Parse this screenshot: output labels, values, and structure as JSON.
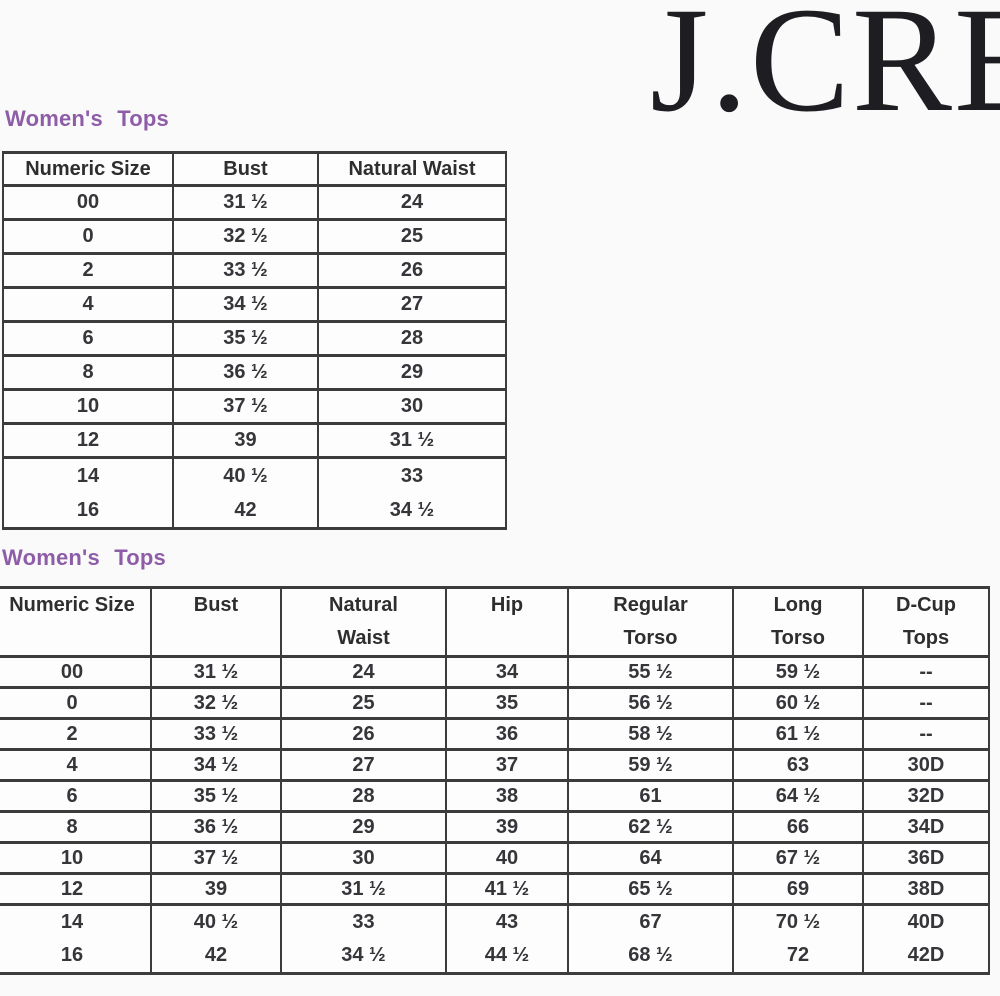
{
  "brand": {
    "logo_text": "J.CREW"
  },
  "colors": {
    "title_purple": "#8e5da8",
    "table_border": "#3c3c3c",
    "logo_black": "#1e1e22",
    "background": "#fafafa"
  },
  "tops_basic": {
    "title": "Women's Tops",
    "headers": [
      "Numeric Size",
      "Bust",
      "Natural Waist"
    ],
    "rows": [
      [
        "00",
        "31 ½",
        "24"
      ],
      [
        "0",
        "32 ½",
        "25"
      ],
      [
        "2",
        "33 ½",
        "26"
      ],
      [
        "4",
        "34 ½",
        "27"
      ],
      [
        "6",
        "35 ½",
        "28"
      ],
      [
        "8",
        "36 ½",
        "29"
      ],
      [
        "10",
        "37 ½",
        "30"
      ],
      [
        "12",
        "39",
        "31 ½"
      ],
      [
        "14",
        "40 ½",
        "33"
      ],
      [
        "16",
        "42",
        "34 ½"
      ]
    ]
  },
  "tops_extended": {
    "title": "Women's Tops",
    "headers": [
      "Numeric Size",
      "Bust",
      "Natural Waist",
      "Hip",
      "Regular Torso",
      "Long Torso",
      "D-Cup Tops"
    ],
    "rows": [
      [
        "00",
        "31 ½",
        "24",
        "34",
        "55 ½",
        "59 ½",
        "--"
      ],
      [
        "0",
        "32 ½",
        "25",
        "35",
        "56 ½",
        "60 ½",
        "--"
      ],
      [
        "2",
        "33 ½",
        "26",
        "36",
        "58 ½",
        "61 ½",
        "--"
      ],
      [
        "4",
        "34 ½",
        "27",
        "37",
        "59 ½",
        "63",
        "30D"
      ],
      [
        "6",
        "35 ½",
        "28",
        "38",
        "61",
        "64 ½",
        "32D"
      ],
      [
        "8",
        "36 ½",
        "29",
        "39",
        "62 ½",
        "66",
        "34D"
      ],
      [
        "10",
        "37 ½",
        "30",
        "40",
        "64",
        "67 ½",
        "36D"
      ],
      [
        "12",
        "39",
        "31 ½",
        "41 ½",
        "65 ½",
        "69",
        "38D"
      ],
      [
        "14",
        "40 ½",
        "33",
        "43",
        "67",
        "70 ½",
        "40D"
      ],
      [
        "16",
        "42",
        "34 ½",
        "44 ½",
        "68 ½",
        "72",
        "42D"
      ]
    ]
  }
}
